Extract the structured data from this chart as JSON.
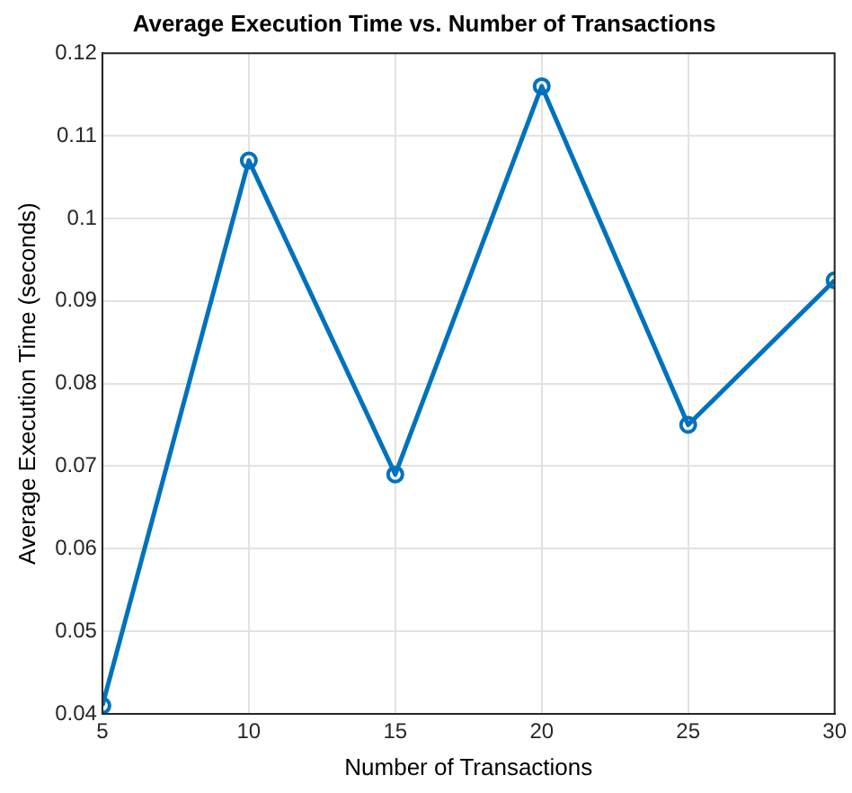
{
  "chart_data": {
    "type": "line",
    "title": "Average Execution Time vs. Number of Transactions",
    "xlabel": "Number of Transactions",
    "ylabel": "Average Execution Time (seconds)",
    "x": [
      5,
      10,
      15,
      20,
      25,
      30
    ],
    "series": [
      {
        "color": "#0072bd",
        "values": [
          0.041,
          0.107,
          0.069,
          0.116,
          0.075,
          0.0925
        ]
      }
    ],
    "xlim": [
      5,
      30
    ],
    "xticks": [
      5,
      10,
      15,
      20,
      25,
      30
    ],
    "ylim": [
      0.04,
      0.12
    ],
    "yticks": [
      0.04,
      0.05,
      0.06,
      0.07,
      0.08,
      0.09,
      0.1,
      0.11,
      0.12
    ],
    "grid": true,
    "marker": "circle",
    "line_style": "solid",
    "legend": false
  }
}
